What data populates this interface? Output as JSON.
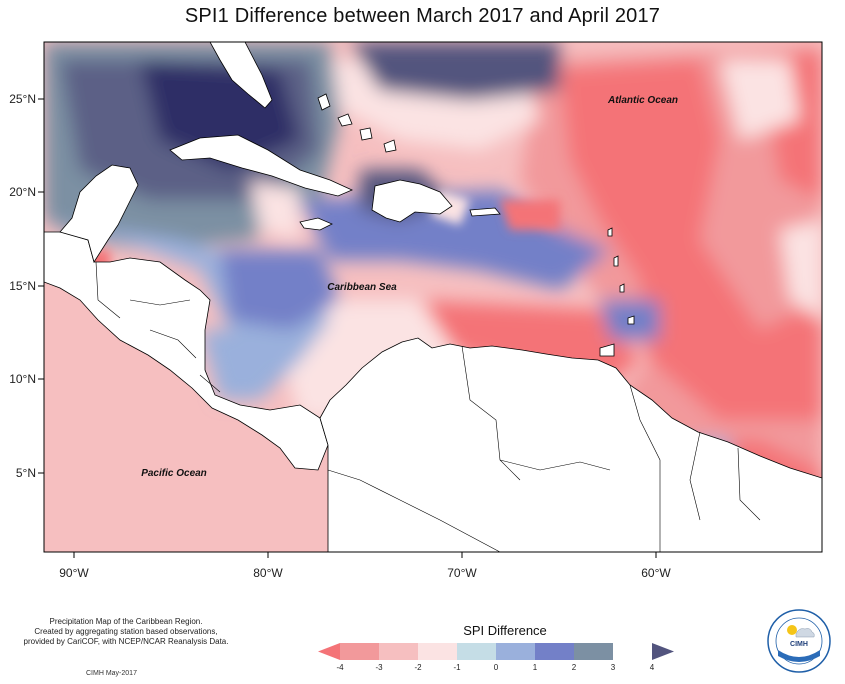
{
  "title": "SPI1 Difference between March 2017 and April 2017",
  "map": {
    "longitude_ticks": [
      "90°W",
      "80°W",
      "70°W",
      "60°W"
    ],
    "latitude_ticks": [
      "25°N",
      "20°N",
      "15°N",
      "10°N",
      "5°N"
    ],
    "labels": {
      "atlantic": "Atlantic Ocean",
      "caribbean": "Caribbean Sea",
      "pacific": "Pacific Ocean"
    }
  },
  "legend": {
    "title": "SPI Difference",
    "ticks": [
      "-4",
      "-3",
      "-2",
      "-1",
      "0",
      "1",
      "2",
      "3",
      "4"
    ],
    "colors": [
      "#f47377",
      "#f2999b",
      "#f6bfc0",
      "#fbe3e3",
      "#c5dde6",
      "#9ab0dc",
      "#7380c8",
      "#7c90a3",
      "#52547e"
    ]
  },
  "footnote": [
    "Precipitation Map of the Caribbean Region.",
    "Created by aggregating station based observations,",
    "provided by CariCOF, with NCEP/NCAR Reanalysis Data."
  ],
  "credit": "CIMH May-2017",
  "logo": {
    "text": "CIMH"
  }
}
